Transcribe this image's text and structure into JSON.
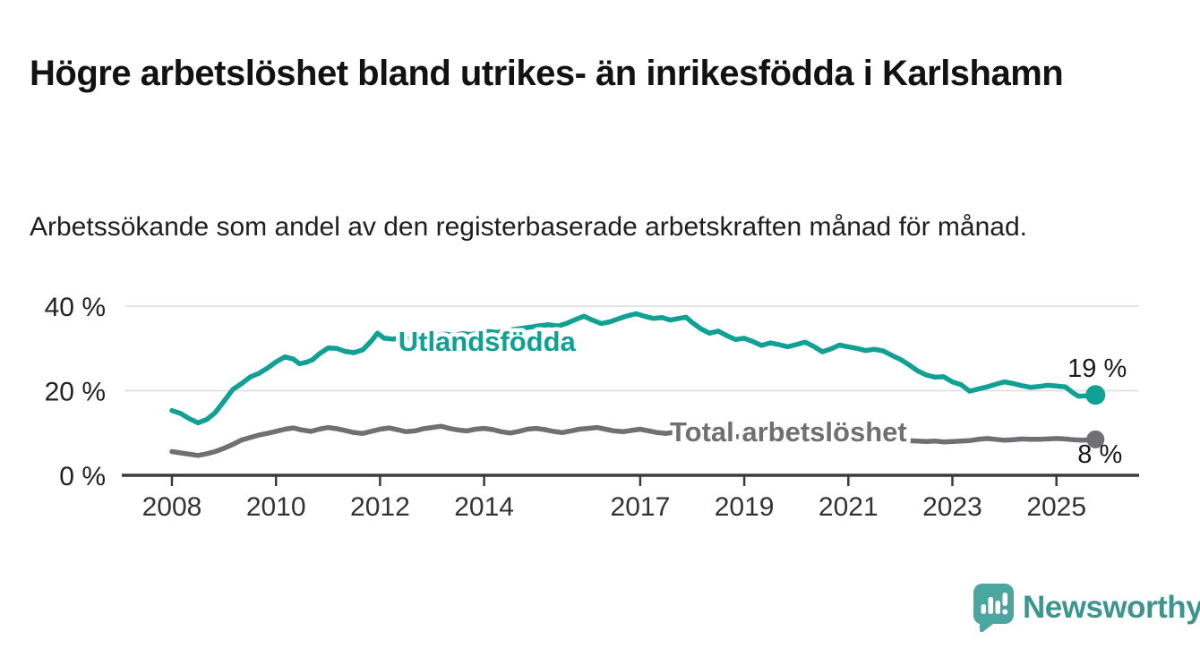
{
  "page": {
    "title": "Högre arbetslöshet bland utrikes- än inrikesfödda i Karlshamn",
    "subtitle": "Arbetssökande som andel av den registerbaserade arbetskraften månad för månad."
  },
  "branding": {
    "logo_text": "Newsworthy",
    "logo_icon": "speech-bubble-bar-chart-icon",
    "logo_text_color": "#3e958f",
    "logo_icon_color": "#4ba5a0"
  },
  "chart_data": {
    "type": "line",
    "title": "",
    "xlabel": "",
    "ylabel": "",
    "unit": "%",
    "grid": "horizontal-only",
    "legend": "inline-labels-on-lines",
    "x_axis": {
      "range": [
        2007.1,
        2026.6
      ],
      "tick_years": [
        2008,
        2010,
        2012,
        2014,
        2017,
        2019,
        2021,
        2023,
        2025
      ],
      "tick_labels": [
        "2008",
        "2010",
        "2012",
        "2014",
        "2017",
        "2019",
        "2021",
        "2023",
        "2025"
      ]
    },
    "y_axis": {
      "range": [
        0,
        42
      ],
      "tick_values": [
        0,
        20,
        40
      ],
      "tick_labels": [
        "0 %",
        "20 %",
        "40 %"
      ],
      "gridline_values": [
        20,
        40
      ]
    },
    "series": [
      {
        "name": "Utlandsfödda",
        "color": "#11a094",
        "label": {
          "text": "Utlandsfödda",
          "year": 2012.35,
          "pct": 29.4
        },
        "end_label": "19 %",
        "end_value": 19,
        "points": [
          [
            2008.0,
            15.3
          ],
          [
            2008.17,
            14.6
          ],
          [
            2008.33,
            13.4
          ],
          [
            2008.5,
            12.4
          ],
          [
            2008.67,
            13.2
          ],
          [
            2008.83,
            14.8
          ],
          [
            2009.0,
            17.5
          ],
          [
            2009.17,
            20.3
          ],
          [
            2009.33,
            21.6
          ],
          [
            2009.5,
            23.2
          ],
          [
            2009.67,
            24.1
          ],
          [
            2009.83,
            25.3
          ],
          [
            2010.0,
            26.8
          ],
          [
            2010.17,
            28.0
          ],
          [
            2010.33,
            27.5
          ],
          [
            2010.45,
            26.4
          ],
          [
            2010.58,
            26.7
          ],
          [
            2010.7,
            27.3
          ],
          [
            2010.83,
            28.7
          ],
          [
            2011.0,
            30.1
          ],
          [
            2011.17,
            30.0
          ],
          [
            2011.33,
            29.3
          ],
          [
            2011.5,
            29.0
          ],
          [
            2011.67,
            29.7
          ],
          [
            2011.83,
            31.7
          ],
          [
            2011.95,
            33.6
          ],
          [
            2012.08,
            32.4
          ],
          [
            2012.25,
            32.2
          ],
          [
            2012.42,
            32.6
          ],
          [
            2012.58,
            32.3
          ],
          [
            2012.75,
            32.9
          ],
          [
            2012.92,
            33.2
          ],
          [
            2013.08,
            33.0
          ],
          [
            2013.25,
            33.4
          ],
          [
            2013.42,
            33.1
          ],
          [
            2013.58,
            33.5
          ],
          [
            2013.75,
            33.3
          ],
          [
            2013.92,
            33.8
          ],
          [
            2014.08,
            34.0
          ],
          [
            2014.25,
            33.8
          ],
          [
            2014.42,
            34.2
          ],
          [
            2014.58,
            34.5
          ],
          [
            2014.75,
            34.8
          ],
          [
            2014.92,
            35.1
          ],
          [
            2015.08,
            35.4
          ],
          [
            2015.25,
            35.6
          ],
          [
            2015.42,
            35.3
          ],
          [
            2015.58,
            35.9
          ],
          [
            2015.75,
            36.8
          ],
          [
            2015.92,
            37.6
          ],
          [
            2016.08,
            36.7
          ],
          [
            2016.25,
            35.9
          ],
          [
            2016.42,
            36.3
          ],
          [
            2016.58,
            37.0
          ],
          [
            2016.75,
            37.7
          ],
          [
            2016.92,
            38.2
          ],
          [
            2017.08,
            37.6
          ],
          [
            2017.25,
            37.1
          ],
          [
            2017.42,
            37.3
          ],
          [
            2017.58,
            36.7
          ],
          [
            2017.75,
            37.1
          ],
          [
            2017.88,
            37.4
          ],
          [
            2018.0,
            36.1
          ],
          [
            2018.17,
            34.6
          ],
          [
            2018.33,
            33.6
          ],
          [
            2018.5,
            34.1
          ],
          [
            2018.67,
            33.0
          ],
          [
            2018.83,
            32.1
          ],
          [
            2019.0,
            32.4
          ],
          [
            2019.17,
            31.6
          ],
          [
            2019.33,
            30.7
          ],
          [
            2019.5,
            31.3
          ],
          [
            2019.67,
            30.9
          ],
          [
            2019.83,
            30.4
          ],
          [
            2020.0,
            30.9
          ],
          [
            2020.17,
            31.5
          ],
          [
            2020.33,
            30.5
          ],
          [
            2020.5,
            29.2
          ],
          [
            2020.67,
            29.9
          ],
          [
            2020.83,
            30.8
          ],
          [
            2021.0,
            30.4
          ],
          [
            2021.17,
            30.0
          ],
          [
            2021.33,
            29.5
          ],
          [
            2021.5,
            29.8
          ],
          [
            2021.67,
            29.4
          ],
          [
            2021.83,
            28.4
          ],
          [
            2022.0,
            27.4
          ],
          [
            2022.17,
            26.1
          ],
          [
            2022.33,
            24.7
          ],
          [
            2022.5,
            23.7
          ],
          [
            2022.67,
            23.2
          ],
          [
            2022.83,
            23.3
          ],
          [
            2023.0,
            22.1
          ],
          [
            2023.17,
            21.4
          ],
          [
            2023.33,
            19.9
          ],
          [
            2023.5,
            20.4
          ],
          [
            2023.67,
            20.9
          ],
          [
            2023.83,
            21.5
          ],
          [
            2024.0,
            22.1
          ],
          [
            2024.17,
            21.7
          ],
          [
            2024.33,
            21.2
          ],
          [
            2024.5,
            20.8
          ],
          [
            2024.67,
            21.0
          ],
          [
            2024.83,
            21.3
          ],
          [
            2025.0,
            21.1
          ],
          [
            2025.17,
            20.9
          ],
          [
            2025.33,
            19.4
          ],
          [
            2025.42,
            18.7
          ],
          [
            2025.58,
            18.8
          ],
          [
            2025.75,
            19.0
          ]
        ]
      },
      {
        "name": "Total arbetslöshet",
        "color": "#6f6f74",
        "label": {
          "text": "Total arbetslöshet",
          "year": 2017.57,
          "pct": 8.0
        },
        "end_label": "8 %",
        "end_value": 8,
        "points": [
          [
            2008.0,
            5.6
          ],
          [
            2008.17,
            5.3
          ],
          [
            2008.33,
            5.0
          ],
          [
            2008.5,
            4.7
          ],
          [
            2008.67,
            5.1
          ],
          [
            2008.83,
            5.6
          ],
          [
            2009.0,
            6.4
          ],
          [
            2009.17,
            7.3
          ],
          [
            2009.33,
            8.3
          ],
          [
            2009.5,
            8.9
          ],
          [
            2009.67,
            9.5
          ],
          [
            2009.83,
            9.9
          ],
          [
            2010.0,
            10.4
          ],
          [
            2010.17,
            10.9
          ],
          [
            2010.33,
            11.2
          ],
          [
            2010.5,
            10.7
          ],
          [
            2010.67,
            10.4
          ],
          [
            2010.83,
            10.9
          ],
          [
            2011.0,
            11.3
          ],
          [
            2011.17,
            11.0
          ],
          [
            2011.33,
            10.6
          ],
          [
            2011.5,
            10.1
          ],
          [
            2011.67,
            9.9
          ],
          [
            2011.83,
            10.4
          ],
          [
            2012.0,
            10.9
          ],
          [
            2012.17,
            11.2
          ],
          [
            2012.33,
            10.8
          ],
          [
            2012.5,
            10.3
          ],
          [
            2012.67,
            10.5
          ],
          [
            2012.83,
            11.0
          ],
          [
            2013.0,
            11.3
          ],
          [
            2013.17,
            11.6
          ],
          [
            2013.33,
            11.1
          ],
          [
            2013.5,
            10.7
          ],
          [
            2013.67,
            10.5
          ],
          [
            2013.83,
            10.9
          ],
          [
            2014.0,
            11.1
          ],
          [
            2014.17,
            10.8
          ],
          [
            2014.33,
            10.3
          ],
          [
            2014.5,
            10.0
          ],
          [
            2014.67,
            10.4
          ],
          [
            2014.83,
            10.9
          ],
          [
            2015.0,
            11.1
          ],
          [
            2015.17,
            10.8
          ],
          [
            2015.33,
            10.4
          ],
          [
            2015.5,
            10.1
          ],
          [
            2015.67,
            10.5
          ],
          [
            2015.83,
            10.9
          ],
          [
            2016.0,
            11.1
          ],
          [
            2016.17,
            11.3
          ],
          [
            2016.33,
            10.9
          ],
          [
            2016.5,
            10.5
          ],
          [
            2016.67,
            10.3
          ],
          [
            2016.83,
            10.6
          ],
          [
            2017.0,
            10.9
          ],
          [
            2017.17,
            10.5
          ],
          [
            2017.33,
            10.1
          ],
          [
            2017.5,
            9.9
          ],
          [
            2017.67,
            10.2
          ],
          [
            2018.0,
            9.7
          ],
          [
            2018.33,
            9.4
          ],
          [
            2018.67,
            9.2
          ],
          [
            2019.0,
            9.1
          ],
          [
            2019.33,
            9.0
          ],
          [
            2019.67,
            8.9
          ],
          [
            2020.0,
            9.3
          ],
          [
            2020.25,
            9.9
          ],
          [
            2020.5,
            9.7
          ],
          [
            2020.75,
            9.4
          ],
          [
            2021.0,
            9.1
          ],
          [
            2021.33,
            8.8
          ],
          [
            2021.67,
            8.5
          ],
          [
            2022.0,
            8.3
          ],
          [
            2022.17,
            8.2
          ],
          [
            2022.33,
            8.1
          ],
          [
            2022.5,
            8.0
          ],
          [
            2022.67,
            8.1
          ],
          [
            2022.83,
            7.9
          ],
          [
            2023.0,
            8.0
          ],
          [
            2023.17,
            8.1
          ],
          [
            2023.33,
            8.2
          ],
          [
            2023.5,
            8.5
          ],
          [
            2023.67,
            8.7
          ],
          [
            2023.83,
            8.5
          ],
          [
            2024.0,
            8.3
          ],
          [
            2024.17,
            8.4
          ],
          [
            2024.33,
            8.6
          ],
          [
            2024.5,
            8.5
          ],
          [
            2024.67,
            8.5
          ],
          [
            2024.83,
            8.6
          ],
          [
            2025.0,
            8.7
          ],
          [
            2025.17,
            8.6
          ],
          [
            2025.33,
            8.4
          ],
          [
            2025.5,
            8.3
          ],
          [
            2025.67,
            8.4
          ],
          [
            2025.75,
            8.5
          ]
        ]
      }
    ]
  }
}
